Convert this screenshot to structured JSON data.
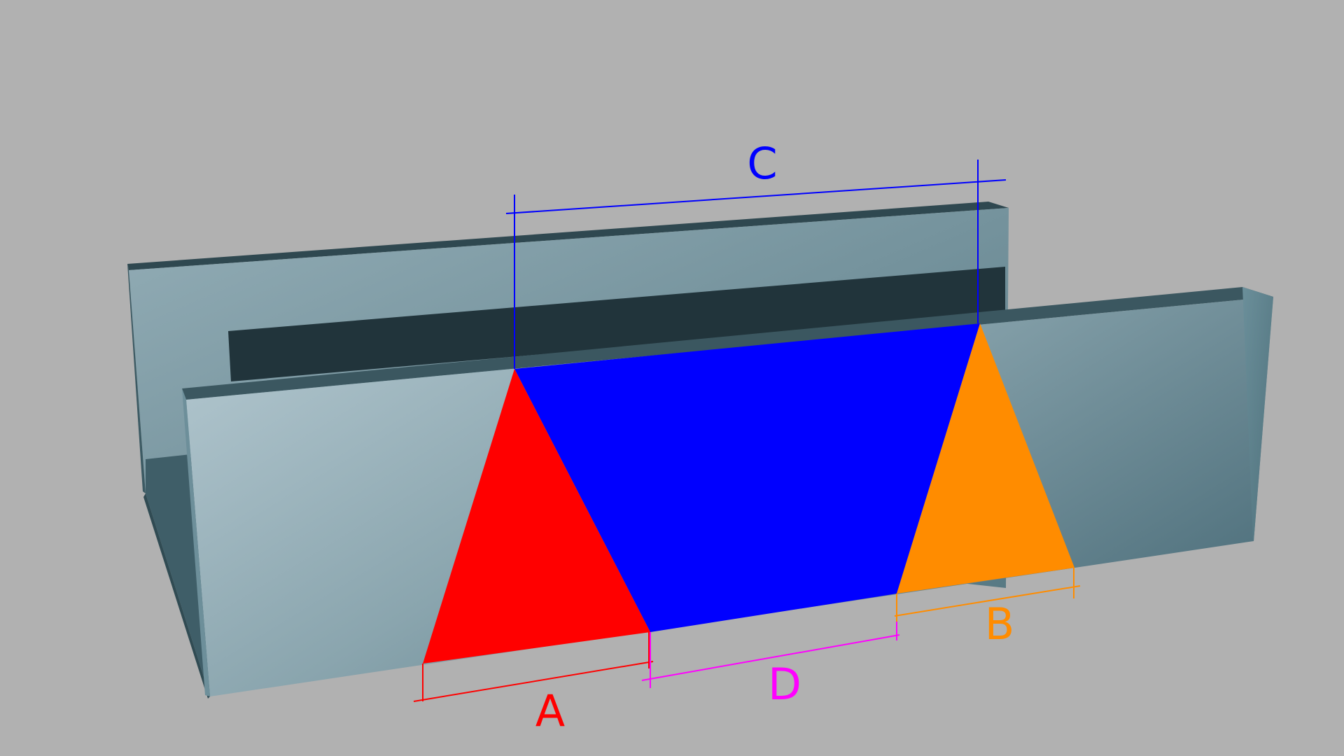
{
  "colors": {
    "background": "#b1b1b1",
    "label_a": "#ff0000",
    "label_b": "#ff8c00",
    "label_c": "#0000ff",
    "label_d": "#ff00ff",
    "region_a": "#ff0000",
    "region_b": "#ff8c00",
    "region_c": "#0000ff",
    "slab_light": "#b4c8d0",
    "slab_dark": "#4f717c",
    "slot_dark": "#21343b"
  },
  "dimensions": {
    "a": {
      "label": "A"
    },
    "b": {
      "label": "B"
    },
    "c": {
      "label": "C"
    },
    "d": {
      "label": "D"
    }
  }
}
